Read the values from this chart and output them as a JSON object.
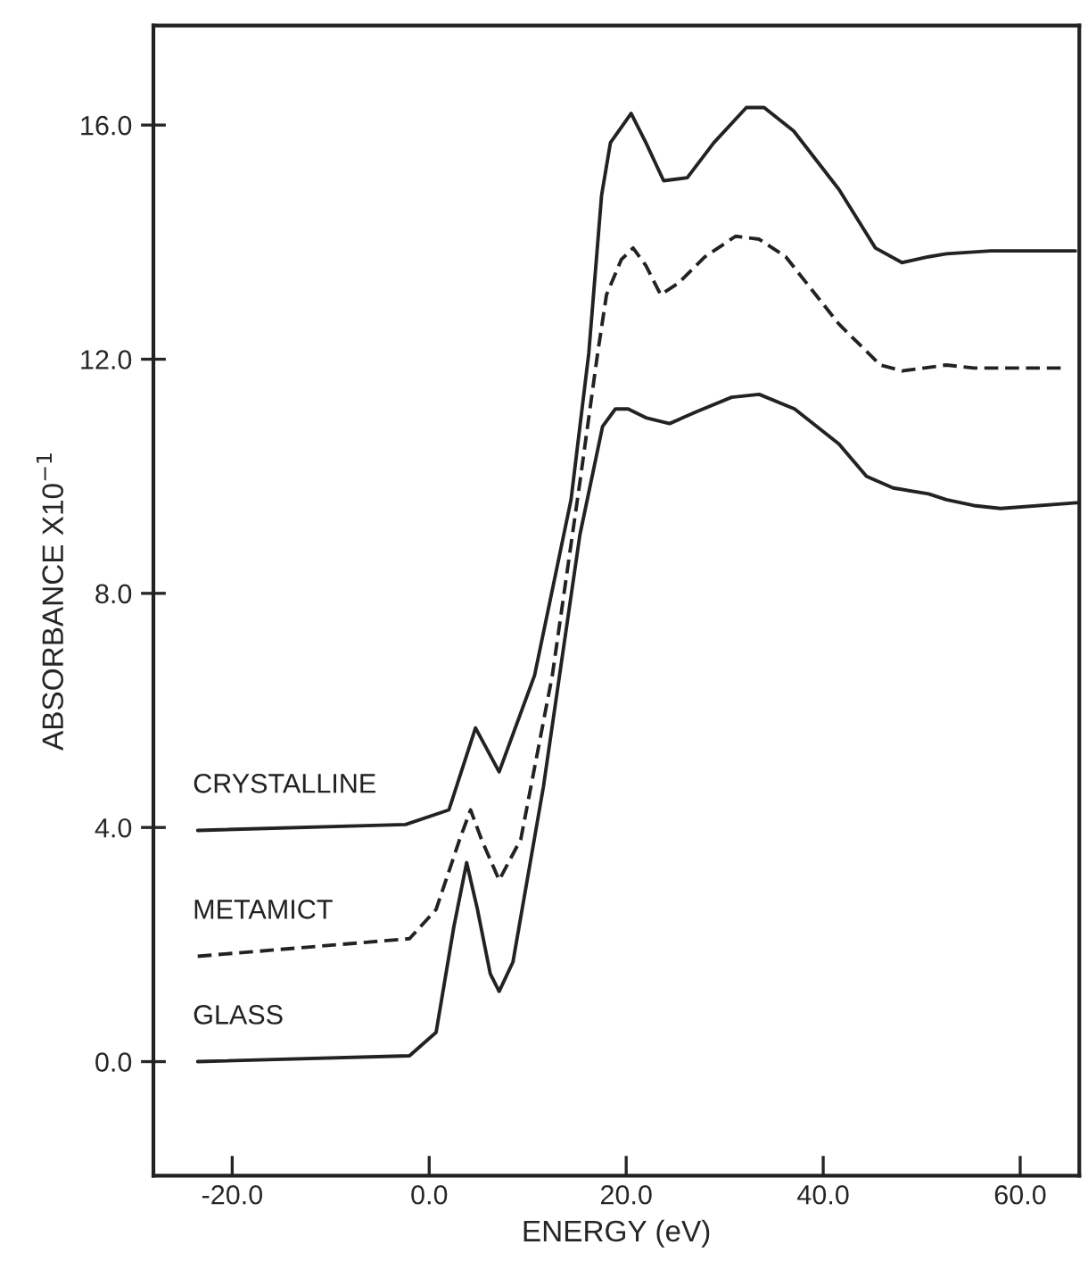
{
  "chart_data": {
    "type": "line",
    "xlabel": "ENERGY (eV)",
    "ylabel": "ABSORBANCE X10$^{−1}$",
    "xlim": [
      -28,
      66
    ],
    "ylim": [
      -1.95,
      17.7
    ],
    "xticks": [
      {
        "value": -20,
        "label": "-20.0"
      },
      {
        "value": 0,
        "label": "0.0"
      },
      {
        "value": 20,
        "label": "20.0"
      },
      {
        "value": 40,
        "label": "40.0"
      },
      {
        "value": 60,
        "label": "60.0"
      }
    ],
    "yticks": [
      {
        "value": 0,
        "label": "0.0"
      },
      {
        "value": 4,
        "label": "4.0"
      },
      {
        "value": 8,
        "label": "8.0"
      },
      {
        "value": 12,
        "label": "12.0"
      },
      {
        "value": 16,
        "label": "16.0"
      }
    ],
    "grid": false,
    "legend": false,
    "marker": "none",
    "series": [
      {
        "name": "CRYSTALLINE",
        "color": "#222222",
        "line_style": "solid",
        "x": [
          -23.5,
          -2.4,
          2,
          4.7,
          7.1,
          10.7,
          14.4,
          16.2,
          17.5,
          18.4,
          20.5,
          22,
          23.8,
          26.2,
          28.9,
          32.2,
          34,
          37,
          41.6,
          45.3,
          48,
          50.7,
          52.5,
          57,
          65.6
        ],
        "values": [
          3.95,
          4.05,
          4.3,
          5.7,
          4.95,
          6.6,
          9.6,
          12.1,
          14.8,
          15.7,
          16.2,
          15.7,
          15.05,
          15.1,
          15.7,
          16.3,
          16.3,
          15.9,
          14.9,
          13.9,
          13.65,
          13.75,
          13.8,
          13.85,
          13.85
        ]
      },
      {
        "name": "METAMICT",
        "color": "#222222",
        "line_style": "dashed",
        "x": [
          -23.5,
          -2,
          0.7,
          3.1,
          4.2,
          5.3,
          7.1,
          9.3,
          12.5,
          15.3,
          17.1,
          18,
          19.5,
          20.7,
          22,
          23.5,
          25.3,
          28,
          31.1,
          33.5,
          36.2,
          41.6,
          45.8,
          48,
          52.5,
          55.3,
          64.7
        ],
        "values": [
          1.8,
          2.1,
          2.6,
          3.8,
          4.3,
          3.8,
          3.1,
          3.8,
          6.6,
          9.9,
          12.1,
          13.1,
          13.7,
          13.9,
          13.6,
          13.1,
          13.3,
          13.75,
          14.1,
          14.05,
          13.75,
          12.6,
          11.9,
          11.8,
          11.9,
          11.85,
          11.85
        ]
      },
      {
        "name": "GLASS",
        "color": "#222222",
        "line_style": "solid",
        "x": [
          -23.5,
          -2,
          0.7,
          2.5,
          3.8,
          4.9,
          6.2,
          7.1,
          8.5,
          11.6,
          15.3,
          17.6,
          18.9,
          20.2,
          22,
          24.4,
          27.1,
          30.7,
          33.5,
          37.1,
          41.6,
          44.4,
          47.1,
          50.7,
          52.5,
          55.3,
          58,
          66
        ],
        "values": [
          0.0,
          0.1,
          0.5,
          2.3,
          3.4,
          2.6,
          1.5,
          1.2,
          1.7,
          4.7,
          9.0,
          10.85,
          11.15,
          11.15,
          11.0,
          10.9,
          11.1,
          11.35,
          11.4,
          11.15,
          10.55,
          10.0,
          9.8,
          9.7,
          9.6,
          9.5,
          9.45,
          9.55
        ]
      }
    ]
  }
}
